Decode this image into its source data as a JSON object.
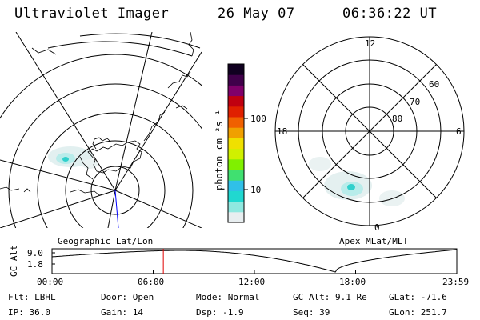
{
  "header": {
    "instrument": "Ultraviolet Imager",
    "date": "26 May 07",
    "time": "06:36:22 UT"
  },
  "colorbar": {
    "label": "photon cm⁻²s⁻¹",
    "ticks": [
      "100",
      "10"
    ],
    "colors": [
      "#e8eef0",
      "#8fe8e0",
      "#20d8d0",
      "#30c0e8",
      "#40e070",
      "#80f000",
      "#d0f000",
      "#f0e000",
      "#f0a000",
      "#f06000",
      "#e02000",
      "#c00010",
      "#80006a",
      "#40004a",
      "#100020"
    ]
  },
  "left_map": {
    "caption": "Geographic Lat/Lon"
  },
  "right_map": {
    "caption": "Apex MLat/MLT",
    "mlt_labels": {
      "top": "12",
      "left": "18",
      "right": "6",
      "bottom": "0"
    },
    "lat_labels": [
      "60",
      "70",
      "80"
    ]
  },
  "timeline": {
    "axis_label": "GC Alt",
    "y_ticks": [
      "9.0",
      "1.8"
    ],
    "x_ticks": [
      "00:00",
      "06:00",
      "12:00",
      "18:00",
      "23:59"
    ],
    "current_time_hours": 6.6,
    "marker_color": "#e00000"
  },
  "info": {
    "filter": "Flt: LBHL",
    "ip": "IP: 36.0",
    "door": "Door: Open",
    "gain": "Gain: 14",
    "mode": "Mode: Normal",
    "dsp": "Dsp:  -1.9",
    "gc_alt": "GC Alt: 9.1 Re",
    "seq": "Seq: 39",
    "glat": "GLat: -71.6",
    "glon": "GLon: 251.7"
  }
}
